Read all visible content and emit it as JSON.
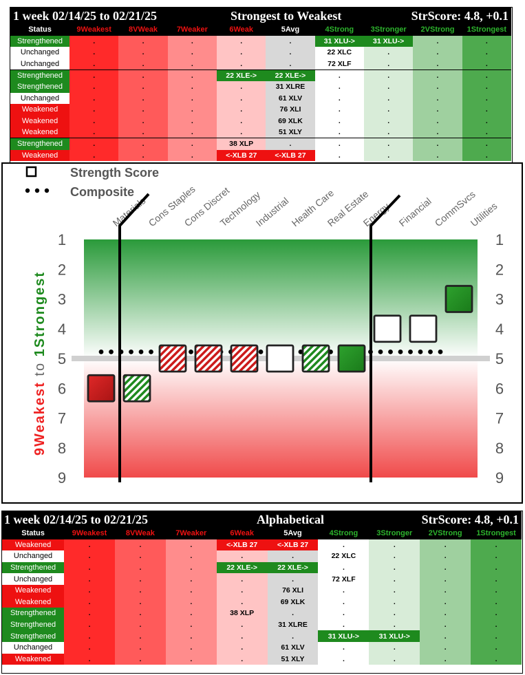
{
  "top": {
    "title_left": "1 week 02/14/25 to 02/21/25",
    "title_center": "Strongest to Weakest",
    "title_right": "StrScore: 4.8, +0.1"
  },
  "bottom": {
    "title_left": "1 week 02/14/25 to 02/21/25",
    "title_center": "Alphabetical",
    "title_right": "StrScore: 4.8, +0.1"
  },
  "headers": [
    "Status",
    "9Weakest",
    "8VWeak",
    "7Weaker",
    "6Weak",
    "5Avg",
    "4Strong",
    "3Stronger",
    "2VStrong",
    "1Strongest"
  ],
  "header_colors": [
    "#ffffff",
    "#ee1111",
    "#ee1111",
    "#ee1111",
    "#ee1111",
    "#ffffff",
    "#2db52d",
    "#2db52d",
    "#2db52d",
    "#2db52d"
  ],
  "top_rows": [
    {
      "status": "Strengthened",
      "cls": "g",
      "cells": [
        ".",
        ".",
        ".",
        ".",
        ".",
        "31 XLU->",
        "31 XLU->",
        ".",
        "."
      ],
      "hi": {
        "5": "g",
        "6": "g"
      }
    },
    {
      "status": "Unchanged",
      "cls": "w",
      "cells": [
        ".",
        ".",
        ".",
        ".",
        ".",
        "22 XLC",
        ".",
        ".",
        "."
      ],
      "hi": {}
    },
    {
      "status": "Unchanged",
      "cls": "w",
      "cells": [
        ".",
        ".",
        ".",
        ".",
        ".",
        "72 XLF",
        ".",
        ".",
        "."
      ],
      "hi": {}
    },
    {
      "status": "Strengthened",
      "cls": "g",
      "cells": [
        ".",
        ".",
        ".",
        "22 XLE->",
        "22 XLE->",
        ".",
        ".",
        ".",
        "."
      ],
      "hi": {
        "3": "g",
        "4": "g"
      },
      "sep": true
    },
    {
      "status": "Strengthened",
      "cls": "g",
      "cells": [
        ".",
        ".",
        ".",
        ".",
        "31 XLRE",
        ".",
        ".",
        ".",
        "."
      ],
      "hi": {}
    },
    {
      "status": "Unchanged",
      "cls": "w",
      "cells": [
        ".",
        ".",
        ".",
        ".",
        "61 XLV",
        ".",
        ".",
        ".",
        "."
      ],
      "hi": {}
    },
    {
      "status": "Weakened",
      "cls": "r",
      "cells": [
        ".",
        ".",
        ".",
        ".",
        "76 XLI",
        ".",
        ".",
        ".",
        "."
      ],
      "hi": {}
    },
    {
      "status": "Weakened",
      "cls": "r",
      "cells": [
        ".",
        ".",
        ".",
        ".",
        "69 XLK",
        ".",
        ".",
        ".",
        "."
      ],
      "hi": {}
    },
    {
      "status": "Weakened",
      "cls": "r",
      "cells": [
        ".",
        ".",
        ".",
        ".",
        "51 XLY",
        ".",
        ".",
        ".",
        "."
      ],
      "hi": {}
    },
    {
      "status": "Strengthened",
      "cls": "g",
      "cells": [
        ".",
        ".",
        ".",
        "38 XLP",
        ".",
        ".",
        ".",
        ".",
        "."
      ],
      "hi": {},
      "sep": true
    },
    {
      "status": "Weakened",
      "cls": "r",
      "cells": [
        ".",
        ".",
        ".",
        "<-XLB 27",
        "<-XLB 27",
        ".",
        ".",
        ".",
        "."
      ],
      "hi": {
        "3": "r",
        "4": "r"
      }
    }
  ],
  "bottom_rows": [
    {
      "status": "Weakened",
      "cls": "r",
      "cells": [
        ".",
        ".",
        ".",
        "<-XLB 27",
        "<-XLB 27",
        ".",
        ".",
        ".",
        "."
      ],
      "hi": {
        "3": "r",
        "4": "r"
      }
    },
    {
      "status": "Unchanged",
      "cls": "w",
      "cells": [
        ".",
        ".",
        ".",
        ".",
        ".",
        "22 XLC",
        ".",
        ".",
        "."
      ],
      "hi": {}
    },
    {
      "status": "Strengthened",
      "cls": "g",
      "cells": [
        ".",
        ".",
        ".",
        "22 XLE->",
        "22 XLE->",
        ".",
        ".",
        ".",
        "."
      ],
      "hi": {
        "3": "g",
        "4": "g"
      }
    },
    {
      "status": "Unchanged",
      "cls": "w",
      "cells": [
        ".",
        ".",
        ".",
        ".",
        ".",
        "72 XLF",
        ".",
        ".",
        "."
      ],
      "hi": {}
    },
    {
      "status": "Weakened",
      "cls": "r",
      "cells": [
        ".",
        ".",
        ".",
        ".",
        "76 XLI",
        ".",
        ".",
        ".",
        "."
      ],
      "hi": {}
    },
    {
      "status": "Weakened",
      "cls": "r",
      "cells": [
        ".",
        ".",
        ".",
        ".",
        "69 XLK",
        ".",
        ".",
        ".",
        "."
      ],
      "hi": {}
    },
    {
      "status": "Strengthened",
      "cls": "g",
      "cells": [
        ".",
        ".",
        ".",
        "38 XLP",
        ".",
        ".",
        ".",
        ".",
        "."
      ],
      "hi": {}
    },
    {
      "status": "Strengthened",
      "cls": "g",
      "cells": [
        ".",
        ".",
        ".",
        ".",
        "31 XLRE",
        ".",
        ".",
        ".",
        "."
      ],
      "hi": {}
    },
    {
      "status": "Strengthened",
      "cls": "g",
      "cells": [
        ".",
        ".",
        ".",
        ".",
        ".",
        "31 XLU->",
        "31 XLU->",
        ".",
        "."
      ],
      "hi": {
        "5": "g",
        "6": "g"
      }
    },
    {
      "status": "Unchanged",
      "cls": "w",
      "cells": [
        ".",
        ".",
        ".",
        ".",
        "61 XLV",
        ".",
        ".",
        ".",
        "."
      ],
      "hi": {}
    },
    {
      "status": "Weakened",
      "cls": "r",
      "cells": [
        ".",
        ".",
        ".",
        ".",
        "51 XLY",
        ".",
        ".",
        ".",
        "."
      ],
      "hi": {}
    }
  ],
  "chart_data": {
    "type": "scatter",
    "legend": [
      "Strength Score",
      "Composite"
    ],
    "legend_position": "top-left",
    "categories": [
      "Materials",
      "Cons Staples",
      "Cons Discret",
      "Technology",
      "Industrial",
      "Health Care",
      "Real Estate",
      "Energy",
      "Financial",
      "CommSvcs",
      "Utilities"
    ],
    "strength_score": [
      6,
      6,
      5,
      5,
      5,
      5,
      5,
      5,
      4,
      4,
      3
    ],
    "marker_style": [
      "solid-red",
      "hatch-green",
      "hatch-red",
      "hatch-red",
      "hatch-red",
      "empty",
      "hatch-green",
      "solid-green",
      "empty",
      "empty",
      "solid-green"
    ],
    "composite": 4.8,
    "ylim": [
      1,
      9
    ],
    "y_axis_reversed": true,
    "yticks": [
      1,
      2,
      3,
      4,
      5,
      6,
      7,
      8,
      9
    ],
    "ylabel_weak": "9Weakest",
    "ylabel_to": "to",
    "ylabel_strong": "1Strongest",
    "colors": {
      "strong": "#1e8a1e",
      "weak": "#cc1b1b",
      "ref_line": "#d0d0d0"
    }
  }
}
